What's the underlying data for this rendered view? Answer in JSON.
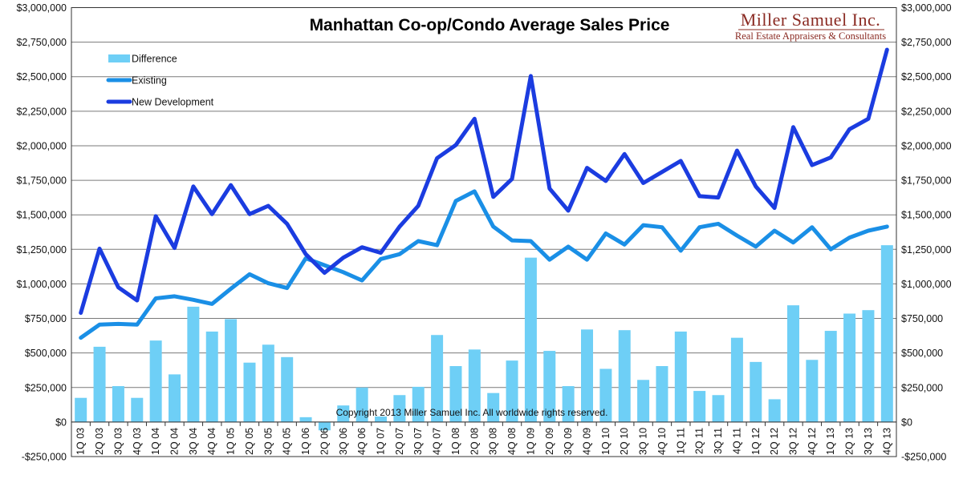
{
  "chart_data": {
    "type": "bar",
    "title": "Manhattan Co-op/Condo Average Sales Price",
    "ylim": [
      -250000,
      3000000
    ],
    "yticks": [
      -250000,
      0,
      250000,
      500000,
      750000,
      1000000,
      1250000,
      1500000,
      1750000,
      2000000,
      2250000,
      2500000,
      2750000,
      3000000
    ],
    "ytick_labels": [
      "-$250,000",
      "$0",
      "$250,000",
      "$500,000",
      "$750,000",
      "$1,000,000",
      "$1,250,000",
      "$1,500,000",
      "$1,750,000",
      "$2,000,000",
      "$2,250,000",
      "$2,500,000",
      "$2,750,000",
      "$3,000,000"
    ],
    "grid": true,
    "legend_position": "top-left",
    "categories": [
      "1Q 03",
      "2Q 03",
      "3Q 03",
      "4Q 03",
      "1Q 04",
      "2Q 04",
      "3Q 04",
      "4Q 04",
      "1Q 05",
      "2Q 05",
      "3Q 05",
      "4Q 05",
      "1Q 06",
      "2Q 06",
      "3Q 06",
      "4Q 06",
      "1Q 07",
      "2Q 07",
      "3Q 07",
      "4Q 07",
      "1Q 08",
      "2Q 08",
      "3Q 08",
      "4Q 08",
      "1Q 09",
      "2Q 09",
      "3Q 09",
      "4Q 09",
      "1Q 10",
      "2Q 10",
      "3Q 10",
      "4Q 10",
      "1Q 11",
      "2Q 11",
      "3Q 11",
      "4Q 11",
      "1Q 12",
      "2Q 12",
      "3Q 12",
      "4Q 12",
      "1Q 13",
      "2Q 13",
      "3Q 13",
      "4Q 13"
    ],
    "series": [
      {
        "name": "Difference",
        "type": "bar",
        "color": "#6ecff6",
        "values": [
          175000,
          545000,
          260000,
          175000,
          590000,
          345000,
          835000,
          655000,
          745000,
          430000,
          560000,
          470000,
          35000,
          -60000,
          120000,
          250000,
          40000,
          195000,
          255000,
          630000,
          405000,
          525000,
          210000,
          445000,
          1190000,
          515000,
          260000,
          670000,
          385000,
          665000,
          305000,
          405000,
          655000,
          225000,
          195000,
          610000,
          435000,
          165000,
          845000,
          450000,
          660000,
          785000,
          810000,
          1280000
        ]
      },
      {
        "name": "Existing",
        "type": "line",
        "color": "#1a8fe6",
        "values": [
          610000,
          705000,
          710000,
          705000,
          895000,
          910000,
          885000,
          855000,
          965000,
          1070000,
          1005000,
          970000,
          1185000,
          1135000,
          1085000,
          1025000,
          1180000,
          1215000,
          1310000,
          1280000,
          1600000,
          1670000,
          1415000,
          1315000,
          1310000,
          1175000,
          1270000,
          1175000,
          1365000,
          1285000,
          1425000,
          1410000,
          1240000,
          1410000,
          1435000,
          1350000,
          1270000,
          1385000,
          1300000,
          1410000,
          1250000,
          1335000,
          1385000,
          1415000
        ]
      },
      {
        "name": "New Development",
        "type": "line",
        "color": "#1b3ce0",
        "values": [
          790000,
          1255000,
          975000,
          880000,
          1490000,
          1260000,
          1705000,
          1505000,
          1715000,
          1505000,
          1565000,
          1435000,
          1215000,
          1080000,
          1190000,
          1265000,
          1225000,
          1415000,
          1565000,
          1910000,
          2005000,
          2195000,
          1630000,
          1760000,
          2505000,
          1690000,
          1530000,
          1840000,
          1745000,
          1940000,
          1730000,
          1810000,
          1890000,
          1635000,
          1625000,
          1965000,
          1705000,
          1550000,
          2135000,
          1860000,
          1915000,
          2120000,
          2195000,
          2695000
        ]
      }
    ],
    "annotations": {
      "brand_name": "Miller Samuel Inc.",
      "brand_tagline": "Real Estate Appraisers & Consultants",
      "copyright": "Copyright 2013 Miller Samuel Inc.  All worldwide rights reserved."
    }
  }
}
